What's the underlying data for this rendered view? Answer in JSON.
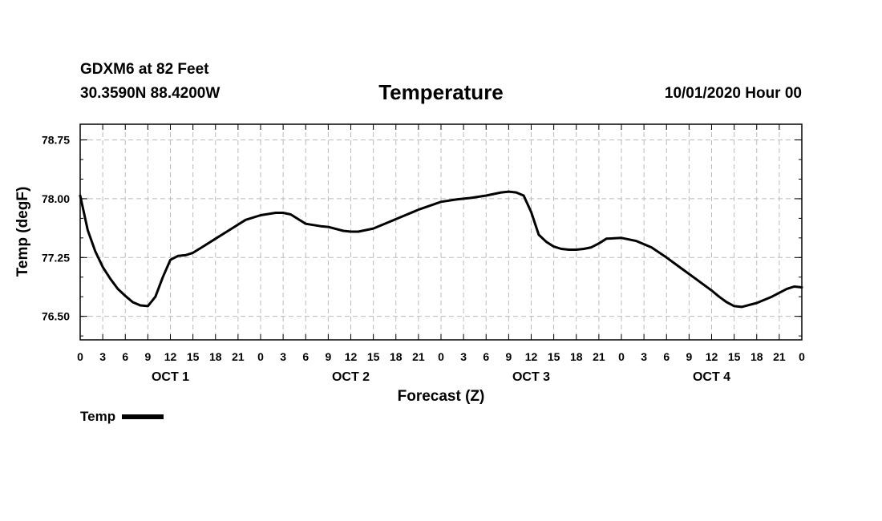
{
  "header": {
    "station": "GDXM6 at 82 Feet",
    "coords": "30.3590N 88.4200W",
    "title": "Temperature",
    "runtime": "10/01/2020 Hour 00"
  },
  "legend": {
    "label": "Temp"
  },
  "colors": {
    "line": "#000000",
    "grid": "#bbbbbb",
    "background": "#ffffff"
  },
  "chart_data": {
    "type": "line",
    "title": "Temperature",
    "xlabel": "Forecast (Z)",
    "ylabel": "Temp (degF)",
    "x_unit": "forecast hour",
    "xlim": [
      0,
      96
    ],
    "ylim": [
      76.2,
      78.95
    ],
    "grid": true,
    "legend_position": "bottom-left",
    "x_ticks": [
      {
        "hour": 0,
        "label": "0"
      },
      {
        "hour": 3,
        "label": "3"
      },
      {
        "hour": 6,
        "label": "6"
      },
      {
        "hour": 9,
        "label": "9"
      },
      {
        "hour": 12,
        "label": "12"
      },
      {
        "hour": 15,
        "label": "15"
      },
      {
        "hour": 18,
        "label": "18"
      },
      {
        "hour": 21,
        "label": "21"
      },
      {
        "hour": 24,
        "label": "0"
      },
      {
        "hour": 27,
        "label": "3"
      },
      {
        "hour": 30,
        "label": "6"
      },
      {
        "hour": 33,
        "label": "9"
      },
      {
        "hour": 36,
        "label": "12"
      },
      {
        "hour": 39,
        "label": "15"
      },
      {
        "hour": 42,
        "label": "18"
      },
      {
        "hour": 45,
        "label": "21"
      },
      {
        "hour": 48,
        "label": "0"
      },
      {
        "hour": 51,
        "label": "3"
      },
      {
        "hour": 54,
        "label": "6"
      },
      {
        "hour": 57,
        "label": "9"
      },
      {
        "hour": 60,
        "label": "12"
      },
      {
        "hour": 63,
        "label": "15"
      },
      {
        "hour": 66,
        "label": "18"
      },
      {
        "hour": 69,
        "label": "21"
      },
      {
        "hour": 72,
        "label": "0"
      },
      {
        "hour": 75,
        "label": "3"
      },
      {
        "hour": 78,
        "label": "6"
      },
      {
        "hour": 81,
        "label": "9"
      },
      {
        "hour": 84,
        "label": "12"
      },
      {
        "hour": 87,
        "label": "15"
      },
      {
        "hour": 90,
        "label": "18"
      },
      {
        "hour": 93,
        "label": "21"
      },
      {
        "hour": 96,
        "label": "0"
      }
    ],
    "y_ticks": [
      {
        "value": 76.5,
        "label": "76.50"
      },
      {
        "value": 77.25,
        "label": "77.25"
      },
      {
        "value": 78.0,
        "label": "78.00"
      },
      {
        "value": 78.75,
        "label": "78.75"
      }
    ],
    "day_labels": [
      {
        "hour": 12,
        "label": "OCT 1"
      },
      {
        "hour": 36,
        "label": "OCT 2"
      },
      {
        "hour": 60,
        "label": "OCT 3"
      },
      {
        "hour": 84,
        "label": "OCT 4"
      }
    ],
    "series": [
      {
        "name": "Temp",
        "x": [
          0,
          1,
          2,
          3,
          4,
          5,
          6,
          7,
          8,
          9,
          10,
          11,
          12,
          13,
          14,
          15,
          16,
          18,
          20,
          22,
          24,
          26,
          27,
          28,
          30,
          32,
          33,
          35,
          36,
          37,
          39,
          42,
          45,
          48,
          50,
          52,
          54,
          56,
          57,
          58,
          59,
          60,
          61,
          62,
          63,
          64,
          65,
          66,
          67,
          68,
          69,
          70,
          72,
          74,
          76,
          78,
          80,
          82,
          84,
          85,
          86,
          87,
          88,
          90,
          92,
          93,
          94,
          95,
          96
        ],
        "y": [
          78.04,
          77.6,
          77.33,
          77.13,
          76.98,
          76.85,
          76.76,
          76.68,
          76.64,
          76.63,
          76.75,
          77.0,
          77.22,
          77.27,
          77.28,
          77.31,
          77.37,
          77.49,
          77.61,
          77.73,
          77.79,
          77.82,
          77.82,
          77.8,
          77.68,
          77.65,
          77.64,
          77.59,
          77.58,
          77.58,
          77.62,
          77.74,
          77.86,
          77.96,
          77.99,
          78.01,
          78.04,
          78.08,
          78.09,
          78.08,
          78.04,
          77.83,
          77.54,
          77.45,
          77.39,
          77.36,
          77.35,
          77.35,
          77.36,
          77.38,
          77.43,
          77.49,
          77.5,
          77.46,
          77.38,
          77.25,
          77.11,
          76.97,
          76.83,
          76.75,
          76.68,
          76.63,
          76.62,
          76.67,
          76.75,
          76.8,
          76.85,
          76.88,
          76.87
        ]
      }
    ]
  }
}
